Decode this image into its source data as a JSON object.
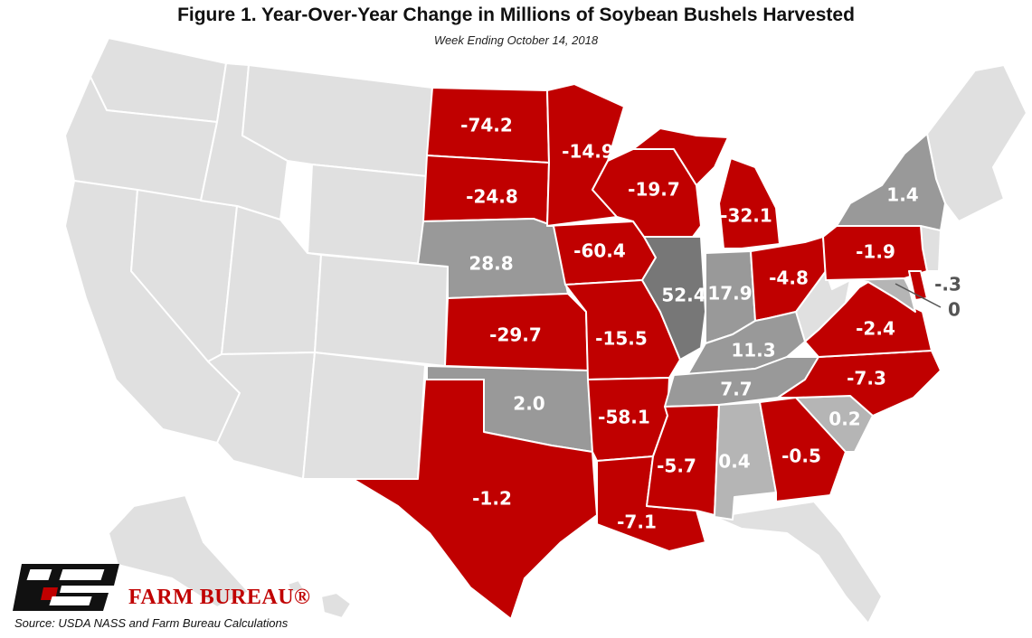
{
  "title": "Figure 1. Year-Over-Year Change in Millions of Soybean Bushels Harvested",
  "subtitle": "Week Ending October 14, 2018",
  "source": "Source: USDA NASS and Farm Bureau Calculations",
  "brand": "FARM BUREAU®",
  "logo_letters": "FB",
  "colors": {
    "decrease": "#c00000",
    "increase": "#999999",
    "increase_strong": "#777777",
    "increase_light": "#b5b5b5",
    "no_data": "#e0e0e0",
    "label_light": "#ffffff",
    "label_dark": "#555555"
  },
  "chart_data": {
    "type": "choropleth",
    "unit": "Millions of bushels",
    "states": [
      {
        "state": "ND",
        "value": "-74.2"
      },
      {
        "state": "MN",
        "value": "-14.9"
      },
      {
        "state": "WI",
        "value": "-19.7"
      },
      {
        "state": "MI",
        "value": "-32.1"
      },
      {
        "state": "NY",
        "value": "1.4"
      },
      {
        "state": "SD",
        "value": "-24.8"
      },
      {
        "state": "IA",
        "value": "-60.4"
      },
      {
        "state": "NE",
        "value": "28.8"
      },
      {
        "state": "IL",
        "value": "52.4"
      },
      {
        "state": "IN",
        "value": "17.9"
      },
      {
        "state": "OH",
        "value": "-4.8"
      },
      {
        "state": "PA",
        "value": "-1.9"
      },
      {
        "state": "DE",
        "value": "-.3"
      },
      {
        "state": "MD",
        "value": "0"
      },
      {
        "state": "KS",
        "value": "-29.7"
      },
      {
        "state": "MO",
        "value": "-15.5"
      },
      {
        "state": "KY",
        "value": "11.3"
      },
      {
        "state": "VA",
        "value": "-2.4"
      },
      {
        "state": "TN",
        "value": "7.7"
      },
      {
        "state": "NC",
        "value": "-7.3"
      },
      {
        "state": "OK",
        "value": "2.0"
      },
      {
        "state": "AR",
        "value": "-58.1"
      },
      {
        "state": "SC",
        "value": "0.2"
      },
      {
        "state": "MS",
        "value": "-5.7"
      },
      {
        "state": "AL",
        "value": "0.4"
      },
      {
        "state": "GA",
        "value": "-0.5"
      },
      {
        "state": "TX",
        "value": "-1.2"
      },
      {
        "state": "LA",
        "value": "-7.1"
      }
    ]
  }
}
